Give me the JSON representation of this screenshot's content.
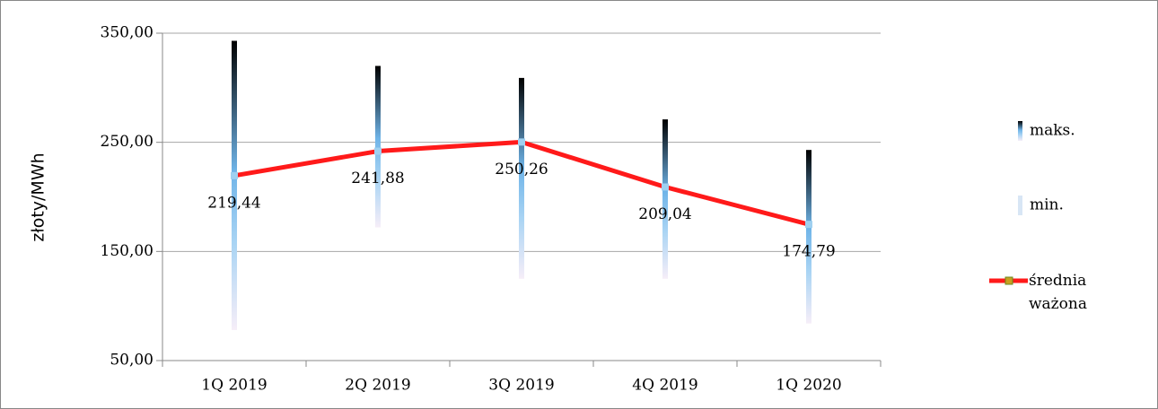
{
  "chart_data": {
    "type": "line",
    "ylabel": "złoty/MWh",
    "categories": [
      "1Q 2019",
      "2Q 2019",
      "3Q 2019",
      "4Q 2019",
      "1Q 2020"
    ],
    "series": [
      {
        "name": "maks.",
        "kind": "high",
        "color": "#000000",
        "values": [
          343,
          320,
          309,
          271,
          243
        ]
      },
      {
        "name": "min.",
        "kind": "low",
        "color": "#d8e6f5",
        "values": [
          78,
          172,
          125,
          125,
          84
        ]
      },
      {
        "name": "średnia ważona",
        "kind": "line",
        "color": "#ff1a1a",
        "values": [
          219.44,
          241.88,
          250.26,
          209.04,
          174.79
        ],
        "value_labels": [
          "219,44",
          "241,88",
          "250,26",
          "209,04",
          "174,79"
        ]
      }
    ],
    "ylim": [
      50,
      350
    ],
    "yticks": [
      {
        "value": 50,
        "label": "50,00"
      },
      {
        "value": 150,
        "label": "150,00"
      },
      {
        "value": 250,
        "label": "250,00"
      },
      {
        "value": 350,
        "label": "350,00"
      }
    ],
    "grid": true
  }
}
